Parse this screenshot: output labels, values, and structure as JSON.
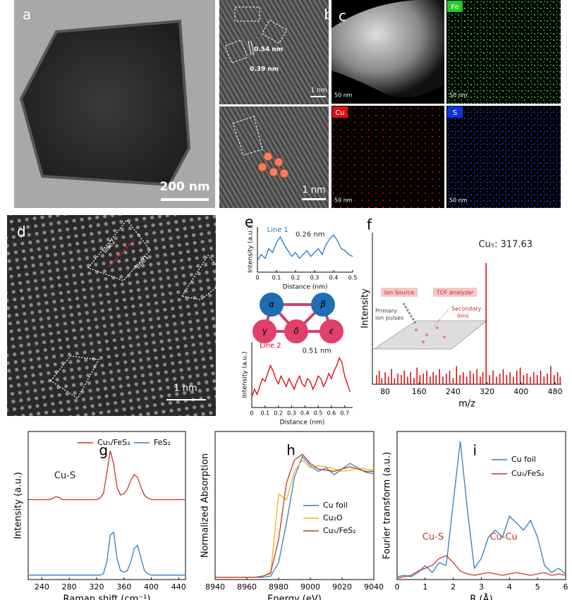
{
  "panels": {
    "a": {
      "label": "a",
      "scale": "200 nm"
    },
    "b": {
      "label": "b",
      "spacing1": "0.54 nm",
      "spacing2": "0.39 nm",
      "scale_top": "1 nm",
      "scale_bottom": "1 nm"
    },
    "c": {
      "label": "c",
      "tiles": [
        {
          "scale": "50 nm"
        },
        {
          "element": "Fe",
          "scale": "50 nm"
        },
        {
          "element": "Cu",
          "scale": "50 nm"
        },
        {
          "element": "S",
          "scale": "50 nm"
        }
      ]
    },
    "d": {
      "label": "d",
      "line2": "line2",
      "line1": "line1",
      "scale": "1 nm"
    },
    "e": {
      "label": "e",
      "atoms": [
        "α",
        "β",
        "γ",
        "δ",
        "ε"
      ]
    },
    "f": {
      "label": "f",
      "inset": [
        "Ion Source",
        "TOF analyzer",
        "Primary",
        "ion pulses",
        "Secondary",
        "Ions"
      ]
    }
  },
  "chart_data": [
    {
      "type": "line",
      "xlabel": "Distance (nm)",
      "ylabel": "Intensity (a.u.)",
      "x": [
        0,
        0.02,
        0.04,
        0.06,
        0.08,
        0.1,
        0.12,
        0.14,
        0.16,
        0.18,
        0.2,
        0.22,
        0.24,
        0.26,
        0.28,
        0.3,
        0.32,
        0.34,
        0.36,
        0.38,
        0.4,
        0.42,
        0.44,
        0.46,
        0.48,
        0.5
      ],
      "series": [
        {
          "name": "Line 1",
          "color": "#1f77c4",
          "values": [
            30,
            45,
            35,
            60,
            50,
            75,
            90,
            70,
            55,
            40,
            50,
            35,
            45,
            55,
            40,
            50,
            60,
            45,
            70,
            85,
            95,
            80,
            60,
            55,
            45,
            40
          ]
        }
      ],
      "xlim": [
        0,
        0.5
      ],
      "ylim": [
        0,
        115
      ],
      "xticks": [
        0,
        0.1,
        0.2,
        0.3,
        0.4,
        0.5
      ],
      "annotations": [
        {
          "text": "Line 1",
          "x": 0.05,
          "y": 108,
          "color": "#1f77c4"
        },
        {
          "text": "0.26 nm",
          "x": 0.2,
          "y": 96,
          "color": "#222"
        }
      ]
    },
    {
      "type": "line",
      "xlabel": "Distance (nm)",
      "ylabel": "Intensity (a.u.)",
      "x": [
        0,
        0.02,
        0.04,
        0.06,
        0.08,
        0.1,
        0.12,
        0.14,
        0.16,
        0.18,
        0.2,
        0.22,
        0.24,
        0.26,
        0.28,
        0.3,
        0.32,
        0.34,
        0.36,
        0.38,
        0.4,
        0.42,
        0.44,
        0.46,
        0.48,
        0.5,
        0.52,
        0.54,
        0.56,
        0.58,
        0.6,
        0.62,
        0.64,
        0.66,
        0.68,
        0.7,
        0.72,
        0.74
      ],
      "series": [
        {
          "name": "Line 2",
          "color": "#e00000",
          "values": [
            20,
            35,
            25,
            40,
            55,
            50,
            65,
            80,
            70,
            55,
            45,
            60,
            50,
            40,
            55,
            45,
            35,
            50,
            60,
            45,
            40,
            55,
            50,
            35,
            45,
            60,
            55,
            40,
            50,
            65,
            55,
            70,
            80,
            95,
            85,
            60,
            45,
            30
          ]
        }
      ],
      "xlim": [
        0,
        0.76
      ],
      "ylim": [
        0,
        125
      ],
      "xticks": [
        0,
        0.1,
        0.2,
        0.3,
        0.4,
        0.5,
        0.6,
        0.7
      ],
      "annotations": [
        {
          "text": "Line 2",
          "x": 0.06,
          "y": 118,
          "color": "#e00000"
        },
        {
          "text": "0.51 nm",
          "x": 0.38,
          "y": 108,
          "color": "#222"
        }
      ]
    },
    {
      "type": "stem",
      "xlabel": "m/z",
      "ylabel": "Intensity",
      "x": [
        60,
        66,
        72,
        80,
        88,
        95,
        102,
        110,
        118,
        125,
        133,
        140,
        148,
        155,
        162,
        170,
        178,
        186,
        193,
        200,
        208,
        216,
        224,
        232,
        240,
        248,
        256,
        264,
        272,
        280,
        288,
        296,
        304,
        310,
        317.63,
        326,
        334,
        342,
        350,
        358,
        366,
        374,
        382,
        390,
        398,
        406,
        414,
        422,
        430,
        438,
        446,
        454,
        462,
        470,
        478,
        486,
        492
      ],
      "series": [
        {
          "name": "Cu₅",
          "color": "#e00000",
          "values": [
            6,
            9,
            4,
            8,
            5,
            10,
            4,
            7,
            6,
            9,
            5,
            8,
            4,
            11,
            6,
            7,
            9,
            5,
            8,
            6,
            10,
            5,
            7,
            9,
            4,
            12,
            6,
            8,
            5,
            9,
            7,
            10,
            5,
            8,
            80,
            6,
            9,
            5,
            7,
            10,
            6,
            8,
            5,
            9,
            11,
            6,
            7,
            5,
            8,
            6,
            9,
            5,
            7,
            12,
            6,
            8,
            5
          ]
        }
      ],
      "xlim": [
        50,
        495
      ],
      "ylim": [
        0,
        100
      ],
      "xticks": [
        80,
        160,
        240,
        320,
        400,
        480
      ],
      "annotations": [
        {
          "text": "Cu₅: 317.63",
          "x": 300,
          "y": 92,
          "color": "#222"
        }
      ]
    },
    {
      "type": "line",
      "panel": "g",
      "xlabel": "Raman shift (cm⁻¹)",
      "ylabel": "Intensity (a.u.)",
      "box": true,
      "legend": "upper center",
      "x": [
        220,
        225,
        230,
        235,
        240,
        245,
        250,
        255,
        260,
        265,
        270,
        275,
        280,
        285,
        290,
        295,
        300,
        305,
        310,
        315,
        320,
        325,
        330,
        335,
        340,
        345,
        350,
        355,
        360,
        365,
        370,
        375,
        380,
        385,
        390,
        395,
        400,
        405,
        410,
        415,
        420,
        425,
        430,
        435,
        440,
        445,
        450
      ],
      "series": [
        {
          "name": "Cu₅/FeS₂",
          "color": "#c0392b",
          "values": [
            54,
            54,
            54,
            54,
            54,
            54,
            54,
            54.5,
            56,
            55.5,
            54,
            54,
            54,
            54,
            54,
            54,
            54,
            54,
            54,
            54,
            54,
            55,
            58,
            72,
            87,
            78,
            62,
            57,
            58,
            61,
            67,
            71,
            69,
            62,
            57,
            55,
            54,
            54,
            54,
            54,
            54,
            54,
            54,
            54,
            54,
            54,
            54
          ]
        },
        {
          "name": "FeS₂",
          "color": "#2f7fc1",
          "values": [
            3,
            3,
            3,
            3,
            3,
            3,
            3,
            3,
            3,
            3,
            3,
            3,
            3,
            3,
            3,
            3,
            3,
            3,
            3,
            3,
            3,
            3,
            4,
            12,
            30,
            32,
            14,
            6,
            5,
            6,
            12,
            21,
            23,
            14,
            6,
            4,
            3,
            3,
            3,
            3,
            3,
            3,
            3,
            3,
            3,
            3,
            3
          ]
        }
      ],
      "xlim": [
        220,
        450
      ],
      "ylim": [
        0,
        100
      ],
      "xticks": [
        240,
        280,
        320,
        360,
        400,
        440
      ],
      "annotations": [
        {
          "text": "Cu-S",
          "x": 258,
          "y": 70,
          "color": "#222"
        }
      ]
    },
    {
      "type": "line",
      "panel": "h",
      "xlabel": "Energy (eV)",
      "ylabel": "Normalized Absorption",
      "box": true,
      "legend": "center right",
      "x": [
        8940,
        8945,
        8950,
        8955,
        8960,
        8965,
        8970,
        8975,
        8980,
        8985,
        8990,
        8995,
        9000,
        9005,
        9010,
        9015,
        9020,
        9025,
        9030,
        9035,
        9040
      ],
      "series": [
        {
          "name": "Cu foil",
          "color": "#2f7fc1",
          "values": [
            0.02,
            0.02,
            0.02,
            0.02,
            0.02,
            0.02,
            0.02,
            0.03,
            0.15,
            0.5,
            0.9,
            1.08,
            1.0,
            0.95,
            0.98,
            0.92,
            0.97,
            1.02,
            0.98,
            0.94,
            0.93
          ]
        },
        {
          "name": "Cu₂O",
          "color": "#e8b422",
          "values": [
            0.02,
            0.02,
            0.02,
            0.02,
            0.02,
            0.02,
            0.03,
            0.05,
            0.75,
            0.7,
            0.95,
            1.05,
            0.98,
            1.0,
            0.99,
            0.97,
            0.95,
            0.96,
            0.98,
            0.97,
            0.96
          ]
        },
        {
          "name": "Cu₅/FeS₂",
          "color": "#c0392b",
          "values": [
            0.02,
            0.02,
            0.02,
            0.02,
            0.02,
            0.02,
            0.03,
            0.06,
            0.35,
            0.85,
            1.05,
            1.1,
            1.02,
            0.97,
            0.96,
            0.95,
            0.97,
            0.99,
            0.97,
            0.95,
            0.95
          ]
        }
      ],
      "xlim": [
        8940,
        9040
      ],
      "ylim": [
        0,
        1.3
      ],
      "xticks": [
        8940,
        8960,
        8980,
        9000,
        9020,
        9040
      ]
    },
    {
      "type": "line",
      "panel": "i",
      "xlabel": "R (Å)",
      "ylabel": "Fourier transform (a.u.)",
      "box": true,
      "legend": "upper right",
      "x": [
        0,
        0.25,
        0.5,
        0.75,
        1,
        1.25,
        1.5,
        1.75,
        2,
        2.25,
        2.5,
        2.75,
        3,
        3.25,
        3.5,
        3.75,
        4,
        4.25,
        4.5,
        4.75,
        5,
        5.25,
        5.5,
        5.75,
        6
      ],
      "series": [
        {
          "name": "Cu foil",
          "color": "#2f7fc1",
          "values": [
            0.02,
            0.03,
            0.02,
            0.05,
            0.1,
            0.05,
            0.12,
            0.1,
            0.55,
            0.98,
            0.5,
            0.08,
            0.15,
            0.3,
            0.35,
            0.3,
            0.45,
            0.4,
            0.35,
            0.42,
            0.3,
            0.1,
            0.05,
            0.08,
            0.04
          ]
        },
        {
          "name": "Cu₅/FeS₂",
          "color": "#c0392b",
          "values": [
            0.01,
            0.02,
            0.03,
            0.06,
            0.08,
            0.1,
            0.15,
            0.17,
            0.12,
            0.06,
            0.04,
            0.03,
            0.04,
            0.05,
            0.04,
            0.03,
            0.04,
            0.05,
            0.04,
            0.03,
            0.04,
            0.05,
            0.03,
            0.04,
            0.03
          ]
        }
      ],
      "xlim": [
        0,
        6
      ],
      "ylim": [
        0,
        1.05
      ],
      "xticks": [
        0,
        1,
        2,
        3,
        4,
        5,
        6
      ],
      "annotations": [
        {
          "text": "Cu-S",
          "x": 0.9,
          "y": 0.3,
          "color": "#c0392b"
        },
        {
          "text": "Cu-Cu",
          "x": 3.3,
          "y": 0.3,
          "color": "#c0392b"
        }
      ]
    }
  ]
}
